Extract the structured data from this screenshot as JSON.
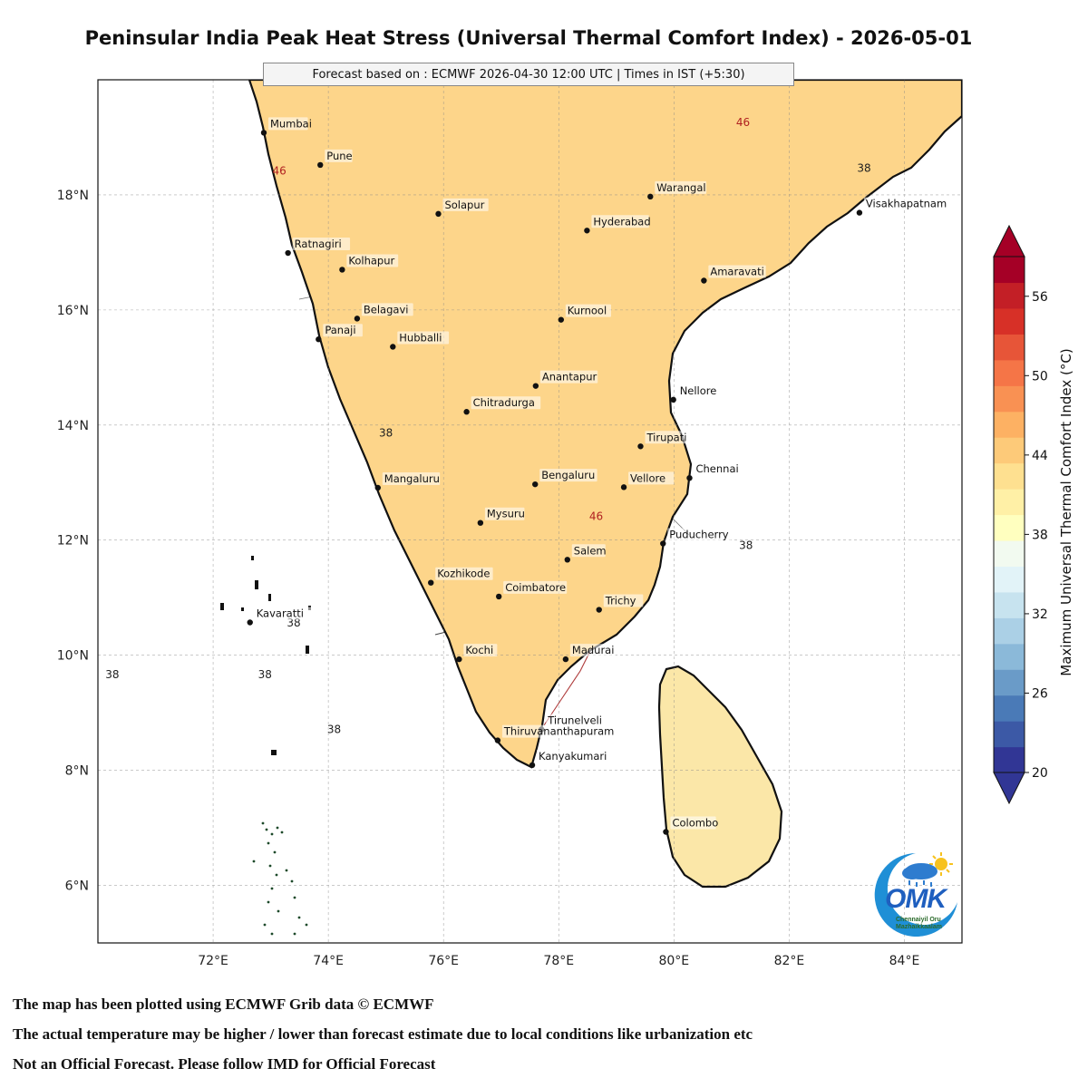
{
  "title": "Peninsular India Peak Heat Stress (Universal Thermal Comfort Index) - 2026-05-01",
  "subtitle": "Forecast based on : ECMWF 2026-04-30 12:00 UTC | Times in IST (+5:30)",
  "map": {
    "lon_range": [
      70,
      85
    ],
    "lat_range": [
      5,
      20
    ],
    "lon_ticks": [
      "72°E",
      "74°E",
      "76°E",
      "78°E",
      "80°E",
      "82°E",
      "84°E"
    ],
    "lat_ticks": [
      "6°N",
      "8°N",
      "10°N",
      "12°N",
      "14°N",
      "16°N",
      "18°N"
    ],
    "grid": true,
    "cities": [
      {
        "name": "Mumbai",
        "lon": 72.88,
        "lat": 19.08
      },
      {
        "name": "Pune",
        "lon": 73.86,
        "lat": 18.52
      },
      {
        "name": "Solapur",
        "lon": 75.91,
        "lat": 17.67
      },
      {
        "name": "Warangal",
        "lon": 79.59,
        "lat": 17.97
      },
      {
        "name": "Hyderabad",
        "lon": 78.49,
        "lat": 17.38
      },
      {
        "name": "Visakhapatnam",
        "lon": 83.22,
        "lat": 17.69
      },
      {
        "name": "Ratnagiri",
        "lon": 73.3,
        "lat": 16.99
      },
      {
        "name": "Kolhapur",
        "lon": 74.24,
        "lat": 16.7
      },
      {
        "name": "Amaravati",
        "lon": 80.52,
        "lat": 16.51
      },
      {
        "name": "Belagavi",
        "lon": 74.5,
        "lat": 15.85
      },
      {
        "name": "Kurnool",
        "lon": 78.04,
        "lat": 15.83
      },
      {
        "name": "Panaji",
        "lon": 73.83,
        "lat": 15.49
      },
      {
        "name": "Hubballi",
        "lon": 75.12,
        "lat": 15.36
      },
      {
        "name": "Anantapur",
        "lon": 77.6,
        "lat": 14.68
      },
      {
        "name": "Nellore",
        "lon": 79.99,
        "lat": 14.44
      },
      {
        "name": "Chitradurga",
        "lon": 76.4,
        "lat": 14.23
      },
      {
        "name": "Tirupati",
        "lon": 79.42,
        "lat": 13.63
      },
      {
        "name": "Chennai",
        "lon": 80.27,
        "lat": 13.08
      },
      {
        "name": "Mangaluru",
        "lon": 74.86,
        "lat": 12.91
      },
      {
        "name": "Bengaluru",
        "lon": 77.59,
        "lat": 12.97
      },
      {
        "name": "Vellore",
        "lon": 79.13,
        "lat": 12.92
      },
      {
        "name": "Mysuru",
        "lon": 76.64,
        "lat": 12.3
      },
      {
        "name": "Puducherry",
        "lon": 79.81,
        "lat": 11.94
      },
      {
        "name": "Salem",
        "lon": 78.15,
        "lat": 11.66
      },
      {
        "name": "Kozhikode",
        "lon": 75.78,
        "lat": 11.26
      },
      {
        "name": "Coimbatore",
        "lon": 76.96,
        "lat": 11.02
      },
      {
        "name": "Trichy",
        "lon": 78.7,
        "lat": 10.79
      },
      {
        "name": "Kavaratti",
        "lon": 72.64,
        "lat": 10.57
      },
      {
        "name": "Kochi",
        "lon": 76.27,
        "lat": 9.93
      },
      {
        "name": "Madurai",
        "lon": 78.12,
        "lat": 9.93
      },
      {
        "name": "Tirunelveli",
        "lon": 77.7,
        "lat": 8.71
      },
      {
        "name": "Thiruvananthapuram",
        "lon": 76.94,
        "lat": 8.52
      },
      {
        "name": "Kanyakumari",
        "lon": 77.54,
        "lat": 8.09
      },
      {
        "name": "Colombo",
        "lon": 79.86,
        "lat": 6.93
      }
    ],
    "contour_labels": [
      {
        "text": "46",
        "lon": 73.15,
        "lat": 18.35,
        "color": "#b02020"
      },
      {
        "text": "46",
        "lon": 81.2,
        "lat": 19.2,
        "color": "#b02020"
      },
      {
        "text": "46",
        "lon": 78.65,
        "lat": 12.35,
        "color": "#b02020"
      },
      {
        "text": "38",
        "lon": 83.3,
        "lat": 18.4,
        "color": "#222222"
      },
      {
        "text": "38",
        "lon": 75.0,
        "lat": 13.8,
        "color": "#222222"
      },
      {
        "text": "38",
        "lon": 81.25,
        "lat": 11.85,
        "color": "#222222"
      },
      {
        "text": "38",
        "lon": 73.4,
        "lat": 10.5,
        "color": "#222222"
      },
      {
        "text": "38",
        "lon": 70.25,
        "lat": 9.6,
        "color": "#222222"
      },
      {
        "text": "38",
        "lon": 72.9,
        "lat": 9.6,
        "color": "#222222"
      },
      {
        "text": "38",
        "lon": 74.1,
        "lat": 8.65,
        "color": "#222222"
      }
    ]
  },
  "colorbar": {
    "label": "Maximum Universal Thermal Comfort Index (°C)",
    "min": 20,
    "max": 59,
    "ticks": [
      "20",
      "26",
      "32",
      "38",
      "44",
      "50",
      "56"
    ],
    "colors": [
      "#313695",
      "#3c59a6",
      "#4a7ab7",
      "#6a9bc8",
      "#8bb9d9",
      "#abd0e6",
      "#c7e3ef",
      "#e2f3f8",
      "#f2faf0",
      "#ffffbf",
      "#fff0a6",
      "#fee090",
      "#fdca79",
      "#fdb163",
      "#f99153",
      "#f57547",
      "#e75538",
      "#d73027",
      "#c31f26",
      "#a50026"
    ]
  },
  "logo": {
    "word": "OMK",
    "tagline": "Chennaiyil Oru Mazhaikkaalam"
  },
  "footnotes": [
    "The map has been plotted using ECMWF Grib data © ECMWF",
    "The actual temperature may be higher / lower than forecast estimate due to local conditions like urbanization etc",
    "Not an Official Forecast. Please follow IMD for Official Forecast"
  ]
}
